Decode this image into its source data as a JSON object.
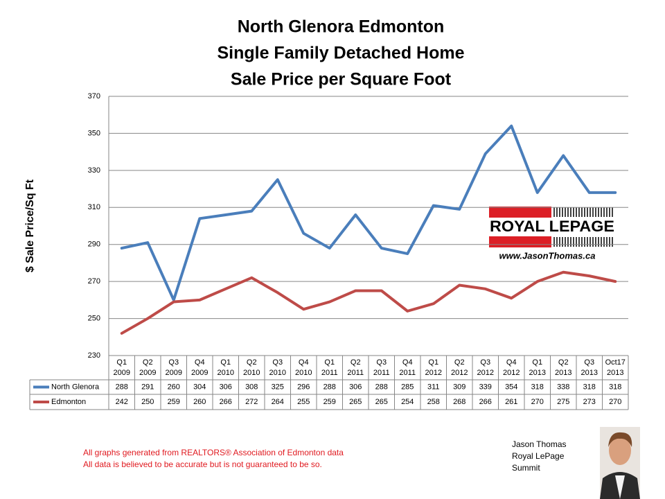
{
  "chart_data": {
    "type": "line",
    "title": [
      "North Glenora Edmonton",
      "Single Family Detached Home",
      "Sale Price per Square Foot"
    ],
    "y_label": "$ Sale Price/Sq Ft",
    "categories": [
      [
        "Q1",
        "2009"
      ],
      [
        "Q2",
        "2009"
      ],
      [
        "Q3",
        "2009"
      ],
      [
        "Q4",
        "2009"
      ],
      [
        "Q1",
        "2010"
      ],
      [
        "Q2",
        "2010"
      ],
      [
        "Q3",
        "2010"
      ],
      [
        "Q4",
        "2010"
      ],
      [
        "Q1",
        "2011"
      ],
      [
        "Q2",
        "2011"
      ],
      [
        "Q3",
        "2011"
      ],
      [
        "Q4",
        "2011"
      ],
      [
        "Q1",
        "2012"
      ],
      [
        "Q2",
        "2012"
      ],
      [
        "Q3",
        "2012"
      ],
      [
        "Q4",
        "2012"
      ],
      [
        "Q1",
        "2013"
      ],
      [
        "Q2",
        "2013"
      ],
      [
        "Q3",
        "2013"
      ],
      [
        "Oct17",
        "2013"
      ]
    ],
    "series": [
      {
        "name": "North Glenora",
        "color": "#4a7ebb",
        "values": [
          288,
          291,
          260,
          304,
          306,
          308,
          325,
          296,
          288,
          306,
          288,
          285,
          311,
          309,
          339,
          354,
          318,
          338,
          318,
          318
        ]
      },
      {
        "name": "Edmonton",
        "color": "#be4b48",
        "values": [
          242,
          250,
          259,
          260,
          266,
          272,
          264,
          255,
          259,
          265,
          265,
          254,
          258,
          268,
          266,
          261,
          270,
          275,
          273,
          270
        ]
      }
    ],
    "ylim": [
      230,
      370
    ],
    "yticks": [
      230,
      250,
      270,
      290,
      310,
      330,
      350,
      370
    ],
    "grid": true
  },
  "logo": {
    "brand": "ROYAL LEPAGE",
    "url": "www.JasonThomas.ca"
  },
  "footer": [
    "All graphs generated from REALTORS® Association of Edmonton data",
    "All data is believed to be accurate but is not guaranteed to be so."
  ],
  "agent": [
    "Jason Thomas",
    "Royal LePage",
    "Summit"
  ]
}
